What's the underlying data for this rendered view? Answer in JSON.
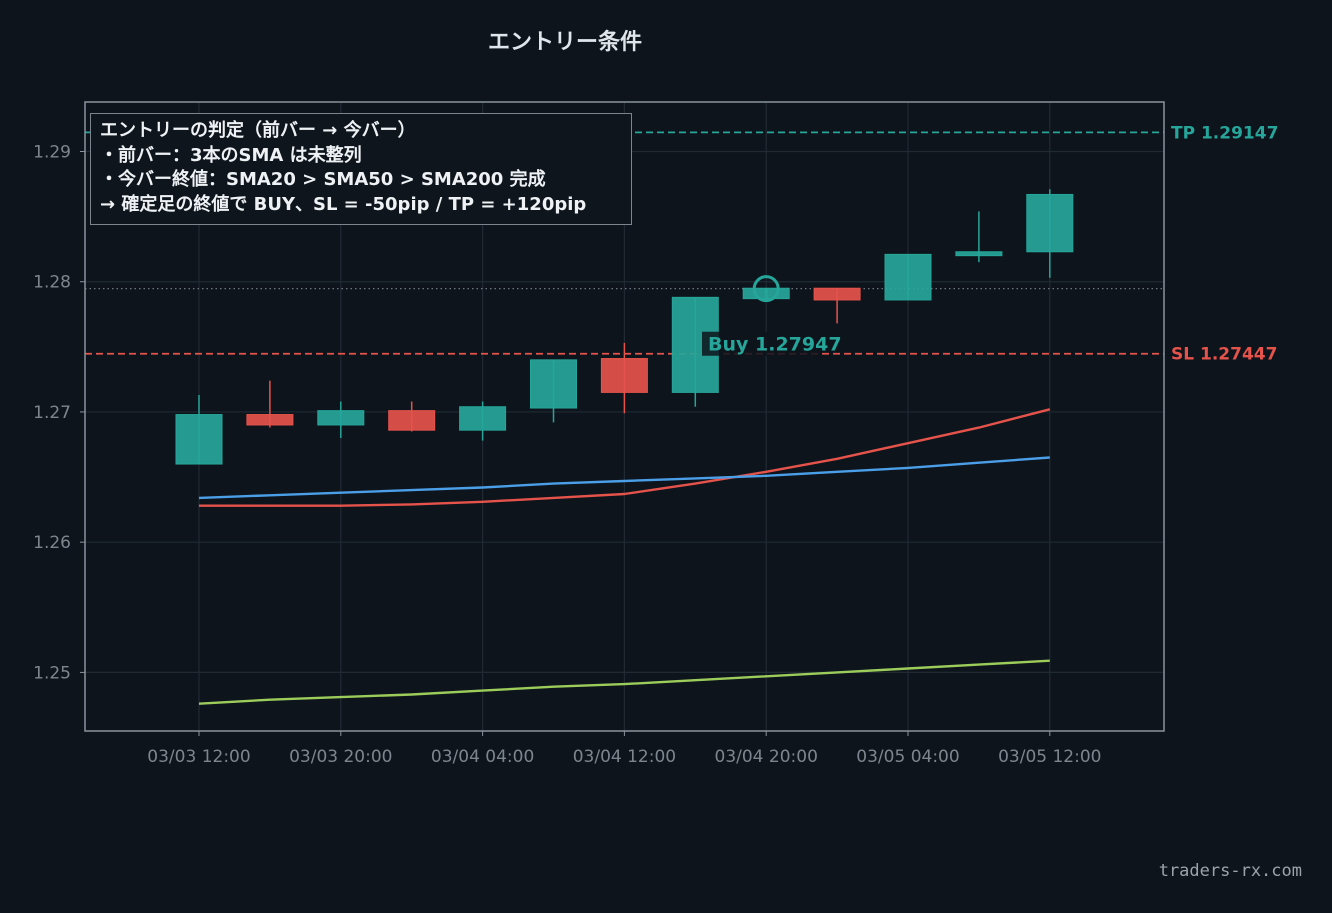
{
  "page": {
    "watermark": "traders-rx.com"
  },
  "chart_data": {
    "type": "candlestick",
    "title": "エントリー条件",
    "xlabel": "",
    "ylabel": "",
    "ylim": [
      1.2455,
      1.2938
    ],
    "grid": true,
    "yticks": [
      1.25,
      1.26,
      1.27,
      1.28,
      1.29
    ],
    "ytick_labels": [
      "1.25",
      "1.26",
      "1.27",
      "1.28",
      "1.29"
    ],
    "xtick_labels": [
      "03/03 12:00",
      "03/03 20:00",
      "03/04 04:00",
      "03/04 12:00",
      "03/04 20:00",
      "03/05 04:00",
      "03/05 12:00"
    ],
    "xtick_bar_index": [
      0,
      2,
      4,
      6,
      8,
      10,
      12
    ],
    "candles": [
      {
        "open": 1.266,
        "high": 1.2713,
        "low": 1.266,
        "close": 1.2698
      },
      {
        "open": 1.2698,
        "high": 1.2724,
        "low": 1.2688,
        "close": 1.269
      },
      {
        "open": 1.269,
        "high": 1.2708,
        "low": 1.268,
        "close": 1.2701
      },
      {
        "open": 1.2701,
        "high": 1.2708,
        "low": 1.2685,
        "close": 1.2686
      },
      {
        "open": 1.2686,
        "high": 1.2708,
        "low": 1.2678,
        "close": 1.2704
      },
      {
        "open": 1.2703,
        "high": 1.274,
        "low": 1.2692,
        "close": 1.274
      },
      {
        "open": 1.2741,
        "high": 1.2753,
        "low": 1.2699,
        "close": 1.2715
      },
      {
        "open": 1.2715,
        "high": 1.2788,
        "low": 1.2704,
        "close": 1.2788
      },
      {
        "open": 1.2787,
        "high": 1.2795,
        "low": 1.2787,
        "close": 1.2795
      },
      {
        "open": 1.2795,
        "high": 1.2795,
        "low": 1.2768,
        "close": 1.2786
      },
      {
        "open": 1.2786,
        "high": 1.2821,
        "low": 1.2786,
        "close": 1.2821
      },
      {
        "open": 1.282,
        "high": 1.2854,
        "low": 1.2815,
        "close": 1.2823
      },
      {
        "open": 1.2823,
        "high": 1.2871,
        "low": 1.2803,
        "close": 1.2867
      }
    ],
    "series": [
      {
        "name": "SMA20",
        "color": "#e5534b",
        "values": [
          1.2628,
          1.2628,
          1.2628,
          1.2629,
          1.2631,
          1.2634,
          1.2637,
          1.2645,
          1.2654,
          1.2664,
          1.2676,
          1.2688,
          1.2702
        ]
      },
      {
        "name": "SMA50",
        "color": "#4a9fe8",
        "values": [
          1.2634,
          1.2636,
          1.2638,
          1.264,
          1.2642,
          1.2645,
          1.2647,
          1.2649,
          1.2651,
          1.2654,
          1.2657,
          1.2661,
          1.2665
        ]
      },
      {
        "name": "SMA200",
        "color": "#9ccc5a",
        "values": [
          1.2476,
          1.2479,
          1.2481,
          1.2483,
          1.2486,
          1.2489,
          1.2491,
          1.2494,
          1.2497,
          1.25,
          1.2503,
          1.2506,
          1.2509
        ]
      }
    ],
    "tp": {
      "value": 1.29147,
      "label": "TP 1.29147",
      "color": "#26a69a"
    },
    "sl": {
      "value": 1.27447,
      "label": "SL 1.27447",
      "color": "#e5534b"
    },
    "entry": {
      "bar_index": 8,
      "value": 1.27947,
      "label": "Buy 1.27947",
      "color": "#26a69a"
    },
    "colors": {
      "up": "#26a69a",
      "down": "#e5534b",
      "grid": "#1f2a33",
      "axis": "#8a939b",
      "tick": "#7d868e",
      "background": "#0e141c"
    },
    "info": {
      "lines": [
        "エントリーの判定（前バー → 今バー）",
        "・前バー：3本のSMA は未整列",
        "・今バー終値：SMA20 > SMA50 > SMA200 完成",
        "→ 確定足の終値で BUY、SL = -50pip / TP = +120pip"
      ]
    }
  }
}
